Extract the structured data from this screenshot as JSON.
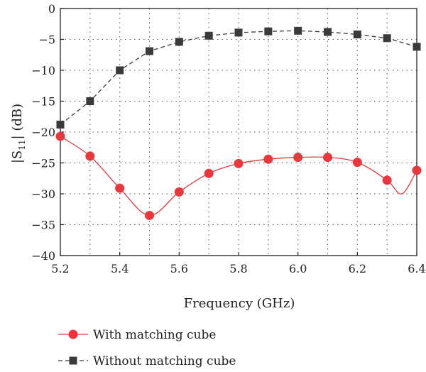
{
  "chart_data": {
    "type": "line",
    "xlabel": "Frequency (GHz)",
    "ylabel_main": "|S",
    "ylabel_sub": "11",
    "ylabel_tail": "| (dB)",
    "xlim": [
      5.2,
      6.4
    ],
    "ylim": [
      -40,
      0
    ],
    "xticks": [
      5.2,
      5.4,
      5.6,
      5.8,
      6.0,
      6.2,
      6.4
    ],
    "xtick_labels": [
      "5.2",
      "5.4",
      "5.6",
      "5.8",
      "6.0",
      "6.2",
      "6.4"
    ],
    "yticks": [
      0,
      -5,
      -10,
      -15,
      -20,
      -25,
      -30,
      -35,
      -40
    ],
    "ytick_labels": [
      "0",
      "−5",
      "−10",
      "−15",
      "−20",
      "−25",
      "−30",
      "−35",
      "−40"
    ],
    "grid": true,
    "legend_position": "bottom",
    "series": [
      {
        "name": "With matching cube",
        "color": "#e8383d",
        "marker": "circle",
        "line_style": "solid",
        "points": [
          {
            "x": 5.2,
            "y": -20.7
          },
          {
            "x": 5.3,
            "y": -23.9
          },
          {
            "x": 5.4,
            "y": -29.1
          },
          {
            "x": 5.5,
            "y": -33.5
          },
          {
            "x": 5.6,
            "y": -29.7
          },
          {
            "x": 5.7,
            "y": -26.7
          },
          {
            "x": 5.8,
            "y": -25.1
          },
          {
            "x": 5.9,
            "y": -24.4
          },
          {
            "x": 6.0,
            "y": -24.1
          },
          {
            "x": 6.1,
            "y": -24.1
          },
          {
            "x": 6.2,
            "y": -24.9
          },
          {
            "x": 6.3,
            "y": -27.8
          },
          {
            "x": 6.35,
            "y": -30.0,
            "marker": false
          },
          {
            "x": 6.4,
            "y": -26.2
          }
        ]
      },
      {
        "name": "Without matching cube",
        "color": "#3a3a3a",
        "marker": "square",
        "line_style": "dashed",
        "points": [
          {
            "x": 5.2,
            "y": -18.8
          },
          {
            "x": 5.3,
            "y": -15.0
          },
          {
            "x": 5.4,
            "y": -10.0
          },
          {
            "x": 5.5,
            "y": -6.9
          },
          {
            "x": 5.6,
            "y": -5.4
          },
          {
            "x": 5.7,
            "y": -4.4
          },
          {
            "x": 5.8,
            "y": -3.9
          },
          {
            "x": 5.9,
            "y": -3.7
          },
          {
            "x": 6.0,
            "y": -3.6
          },
          {
            "x": 6.1,
            "y": -3.8
          },
          {
            "x": 6.2,
            "y": -4.2
          },
          {
            "x": 6.3,
            "y": -4.8
          },
          {
            "x": 6.4,
            "y": -6.2
          }
        ]
      }
    ]
  }
}
